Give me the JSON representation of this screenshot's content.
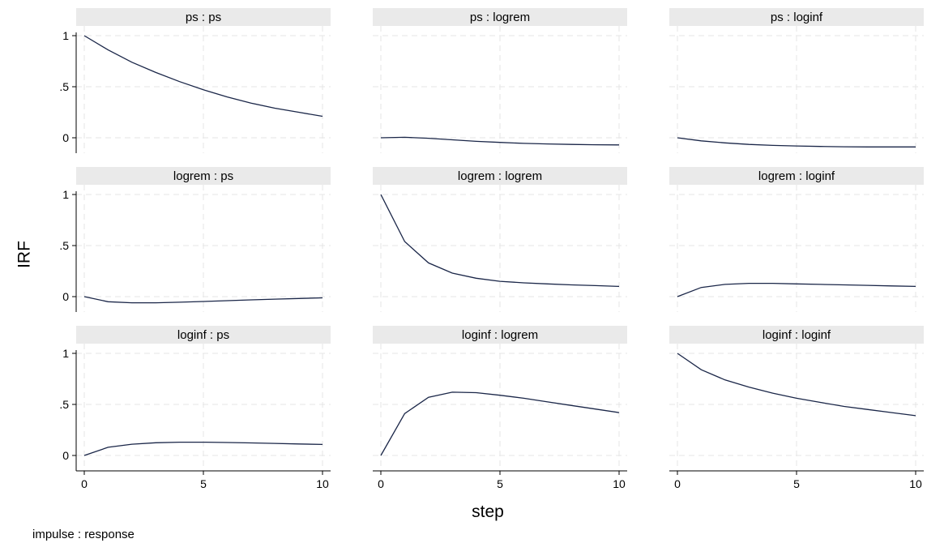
{
  "chart_data": {
    "type": "line",
    "ylabel": "IRF",
    "xlabel": "step",
    "note": "impulse : response",
    "x": [
      0,
      1,
      2,
      3,
      4,
      5,
      6,
      7,
      8,
      9,
      10
    ],
    "xlim": [
      0,
      10
    ],
    "ylim": [
      0,
      1
    ],
    "xticks": [
      0,
      5,
      10
    ],
    "yticks": [
      0,
      0.5,
      1
    ],
    "ytick_labels": [
      "0",
      ".5",
      "1"
    ],
    "xtick_labels": [
      "0",
      "5",
      "10"
    ],
    "grid": true,
    "line_color": "#1a2648",
    "panels": [
      {
        "title": "ps : ps",
        "values": [
          1.0,
          0.86,
          0.74,
          0.64,
          0.55,
          0.47,
          0.4,
          0.34,
          0.29,
          0.25,
          0.21
        ]
      },
      {
        "title": "ps : logrem",
        "values": [
          0.0,
          0.005,
          -0.005,
          -0.02,
          -0.035,
          -0.045,
          -0.055,
          -0.06,
          -0.065,
          -0.068,
          -0.07
        ]
      },
      {
        "title": "ps : loginf",
        "values": [
          0.0,
          -0.03,
          -0.05,
          -0.065,
          -0.075,
          -0.08,
          -0.085,
          -0.088,
          -0.09,
          -0.09,
          -0.09
        ]
      },
      {
        "title": "logrem : ps",
        "values": [
          0.0,
          -0.05,
          -0.06,
          -0.06,
          -0.055,
          -0.048,
          -0.04,
          -0.032,
          -0.025,
          -0.018,
          -0.012
        ]
      },
      {
        "title": "logrem : logrem",
        "values": [
          1.0,
          0.54,
          0.33,
          0.23,
          0.18,
          0.15,
          0.135,
          0.125,
          0.115,
          0.108,
          0.1
        ]
      },
      {
        "title": "logrem : loginf",
        "values": [
          0.0,
          0.09,
          0.12,
          0.13,
          0.13,
          0.125,
          0.12,
          0.115,
          0.11,
          0.105,
          0.1
        ]
      },
      {
        "title": "loginf : ps",
        "values": [
          0.0,
          0.08,
          0.11,
          0.125,
          0.13,
          0.13,
          0.127,
          0.123,
          0.118,
          0.113,
          0.108
        ]
      },
      {
        "title": "loginf : logrem",
        "values": [
          0.0,
          0.41,
          0.57,
          0.62,
          0.615,
          0.59,
          0.56,
          0.525,
          0.49,
          0.455,
          0.42
        ]
      },
      {
        "title": "loginf : loginf",
        "values": [
          1.0,
          0.84,
          0.74,
          0.67,
          0.61,
          0.56,
          0.52,
          0.48,
          0.45,
          0.42,
          0.39
        ]
      }
    ]
  }
}
